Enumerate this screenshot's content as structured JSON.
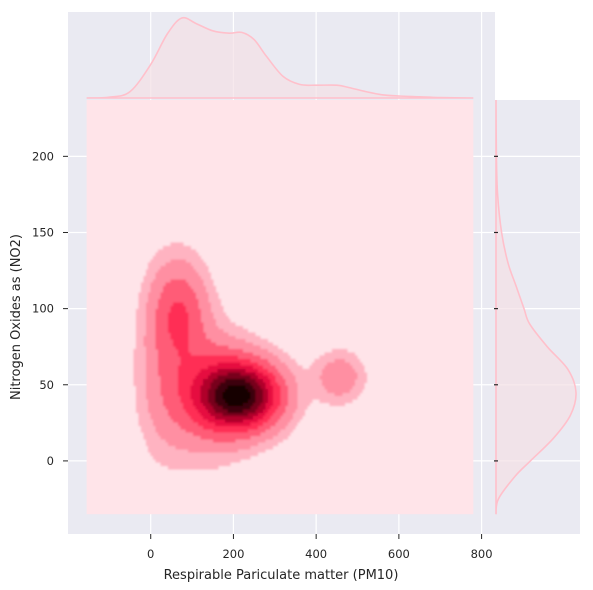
{
  "chart_data": {
    "type": "kde-joint",
    "title": "",
    "xlabel": "Respirable Pariculate matter (PM10)",
    "ylabel": "Nitrogen Oxides as (NO2)",
    "xlim": [
      -200,
      830
    ],
    "ylim": [
      -48,
      237
    ],
    "x_ticks": [
      0,
      200,
      400,
      600,
      800
    ],
    "x_tick_labels": [
      "0",
      "200",
      "400",
      "600",
      "800"
    ],
    "y_ticks": [
      0,
      50,
      100,
      150,
      200
    ],
    "y_tick_labels": [
      "0",
      "50",
      "100",
      "150",
      "200"
    ],
    "grid": true,
    "colors": {
      "background": "#eaeaf2",
      "kde_floor": "#ffe4e9",
      "marginal_line": "#ffc0cb",
      "marginal_fill": "#f3dfe6",
      "level_1": "#ffb3c1",
      "level_2": "#ff8fa2",
      "level_3": "#ff5c77",
      "level_4": "#ff2e55",
      "level_5": "#e6103f",
      "level_6": "#b0062c",
      "level_7": "#78001b",
      "level_8": "#3d000c",
      "level_9": "#120004"
    },
    "kde_extent": {
      "x": [
        -155,
        780
      ],
      "y": [
        -35,
        237
      ]
    },
    "density_components": [
      {
        "x": 70,
        "y": 98,
        "sx": 45,
        "sy": 22,
        "weight": 0.34
      },
      {
        "x": 220,
        "y": 43,
        "sx": 65,
        "sy": 15,
        "weight": 1.0
      },
      {
        "x": 135,
        "y": 45,
        "sx": 70,
        "sy": 25,
        "weight": 0.35
      },
      {
        "x": 455,
        "y": 55,
        "sx": 40,
        "sy": 11,
        "weight": 0.2
      },
      {
        "x": 30,
        "y": 60,
        "sx": 45,
        "sy": 40,
        "weight": 0.12
      }
    ],
    "x_marginal": {
      "x": [
        -155,
        -100,
        -50,
        0,
        40,
        75,
        110,
        150,
        190,
        220,
        250,
        280,
        320,
        360,
        400,
        450,
        480,
        520,
        560,
        600,
        650,
        700,
        780
      ],
      "density": [
        0.0,
        0.01,
        0.08,
        0.42,
        0.8,
        1.0,
        0.93,
        0.84,
        0.81,
        0.82,
        0.73,
        0.52,
        0.27,
        0.17,
        0.16,
        0.16,
        0.13,
        0.08,
        0.04,
        0.025,
        0.015,
        0.005,
        0.0
      ]
    },
    "y_marginal": {
      "y": [
        -35,
        -25,
        -10,
        0,
        15,
        30,
        45,
        60,
        75,
        90,
        100,
        115,
        130,
        150,
        175,
        200,
        237
      ],
      "density": [
        0.0,
        0.03,
        0.24,
        0.43,
        0.72,
        0.93,
        1.0,
        0.9,
        0.64,
        0.42,
        0.35,
        0.25,
        0.15,
        0.07,
        0.02,
        0.005,
        0.0
      ]
    }
  }
}
